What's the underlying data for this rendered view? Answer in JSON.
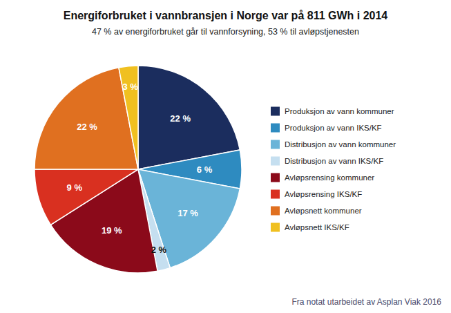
{
  "chart_data": {
    "type": "pie",
    "title": "Energiforbruket i vannbransjen i Norge var på 811 GWh i 2014",
    "subtitle": "47 % av energiforbruket går til vannforsyning, 53 % til avløpstjenesten",
    "annotations": [
      "Fra notat utarbeidet av Asplan Viak 2016"
    ],
    "categories": [
      "Produksjon av vann kommuner",
      "Produksjon av vann IKS/KF",
      "Distribusjon av vann kommuner",
      "Distribusjon av vann IKS/KF",
      "Avløpsrensing kommuner",
      "Avløpsrensing IKS/KF",
      "Avløpsnett kommuner",
      "Avløpsnett IKS/KF"
    ],
    "values": [
      22,
      6,
      17,
      2,
      19,
      9,
      22,
      3
    ],
    "value_labels": [
      "22 %",
      "6 %",
      "17 %",
      "2 %",
      "19 %",
      "9 %",
      "22 %",
      "3 %"
    ],
    "colors": [
      "#1b2d5e",
      "#2e8bc0",
      "#6ab4d8",
      "#c5dff0",
      "#8b0a1a",
      "#d93020",
      "#e07020",
      "#f0c020"
    ],
    "data_labels": true,
    "legend": "right"
  }
}
